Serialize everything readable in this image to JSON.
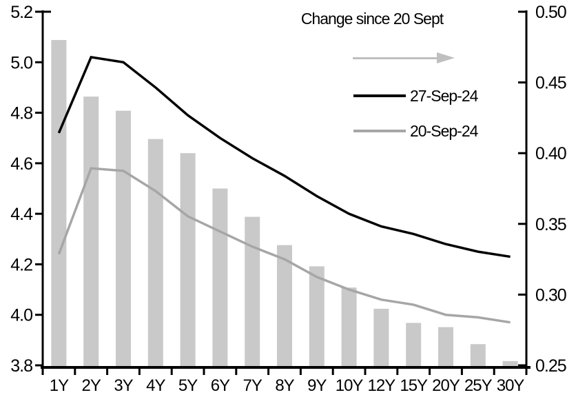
{
  "chart_data": {
    "type": "combo-bar-line",
    "categories": [
      "1Y",
      "2Y",
      "3Y",
      "4Y",
      "5Y",
      "6Y",
      "7Y",
      "8Y",
      "9Y",
      "10Y",
      "12Y",
      "15Y",
      "20Y",
      "25Y",
      "30Y"
    ],
    "series": [
      {
        "name": "27-Sep-24",
        "type": "line",
        "axis": "left",
        "color": "#000000",
        "values": [
          4.72,
          5.02,
          5.0,
          4.9,
          4.79,
          4.7,
          4.62,
          4.55,
          4.47,
          4.4,
          4.35,
          4.32,
          4.28,
          4.25,
          4.23
        ]
      },
      {
        "name": "20-Sep-24",
        "type": "line",
        "axis": "left",
        "color": "#a6a6a6",
        "values": [
          4.24,
          4.58,
          4.57,
          4.49,
          4.39,
          4.33,
          4.27,
          4.22,
          4.15,
          4.1,
          4.06,
          4.04,
          4.0,
          3.99,
          3.97
        ]
      },
      {
        "name": "Change since 20 Sept",
        "type": "bar",
        "axis": "right",
        "color": "#c9c9c9",
        "values": [
          0.48,
          0.44,
          0.43,
          0.41,
          0.4,
          0.375,
          0.355,
          0.335,
          0.32,
          0.305,
          0.29,
          0.28,
          0.277,
          0.265,
          0.253
        ]
      }
    ],
    "left_axis": {
      "min": 3.8,
      "max": 5.2,
      "step": 0.2,
      "tick_labels": [
        "5.2",
        "5.0",
        "4.8",
        "4.6",
        "4.4",
        "4.2",
        "4.0",
        "3.8"
      ]
    },
    "right_axis": {
      "min": 0.25,
      "max": 0.5,
      "step": 0.05,
      "tick_labels": [
        "0.50",
        "0.45",
        "0.40",
        "0.35",
        "0.30",
        "0.25"
      ]
    },
    "grid": false,
    "legend_position": "top-center-inside"
  },
  "legend": {
    "title": "Change since 20 Sept",
    "arrow_icon_color": "#bfbfbf",
    "items": [
      {
        "label": "27-Sep-24",
        "color": "#000000"
      },
      {
        "label": "20-Sep-24",
        "color": "#a6a6a6"
      }
    ]
  },
  "colors": {
    "axis": "#000000",
    "bar_fill": "#c9c9c9",
    "line_primary": "#000000",
    "line_secondary": "#a6a6a6",
    "background": "#ffffff"
  }
}
